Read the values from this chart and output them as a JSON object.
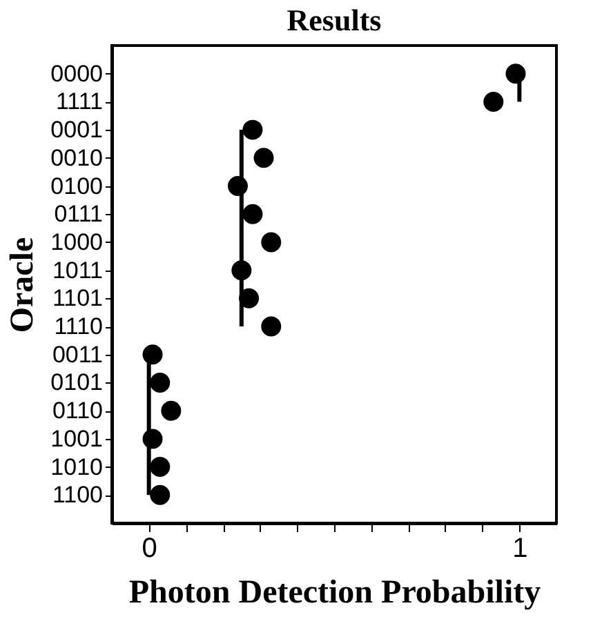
{
  "chart_data": {
    "type": "scatter",
    "title": "Results",
    "xlabel": "Photon Detection Probability",
    "ylabel": "Oracle",
    "orientation": "horizontal",
    "grid": false,
    "categories": [
      "0000",
      "1111",
      "0001",
      "0010",
      "0100",
      "0111",
      "1000",
      "1011",
      "1101",
      "1110",
      "0011",
      "0101",
      "0110",
      "1001",
      "1010",
      "1100"
    ],
    "xlim": [
      -0.1,
      1.1
    ],
    "xticks": [
      0,
      {
        "value": 0.1,
        "label": null
      },
      {
        "value": 0.2,
        "label": null
      },
      {
        "value": 0.3,
        "label": null
      },
      {
        "value": 0.4,
        "label": null
      },
      {
        "value": 0.5,
        "label": null
      },
      {
        "value": 0.6,
        "label": null
      },
      {
        "value": 0.7,
        "label": null
      },
      {
        "value": 0.8,
        "label": null
      },
      {
        "value": 0.9,
        "label": null
      },
      1
    ],
    "series": [
      {
        "type": "scatter",
        "marker": "circle",
        "color": "#000000",
        "values": [
          0.99,
          0.93,
          0.28,
          0.31,
          0.24,
          0.28,
          0.33,
          0.25,
          0.27,
          0.33,
          0.01,
          0.03,
          0.06,
          0.01,
          0.03,
          0.03
        ]
      },
      {
        "type": "line",
        "marker": "none",
        "color": "#000000",
        "values": [
          1,
          1,
          null,
          null,
          null,
          null,
          null,
          null,
          null,
          null,
          null,
          null,
          null,
          null,
          null,
          null
        ]
      },
      {
        "type": "line",
        "marker": "none",
        "color": "#000000",
        "values": [
          null,
          null,
          0.25,
          0.25,
          0.25,
          0.25,
          0.25,
          0.25,
          0.25,
          0.25,
          null,
          null,
          null,
          null,
          null,
          null
        ]
      },
      {
        "type": "line",
        "marker": "none",
        "color": "#000000",
        "values": [
          null,
          null,
          null,
          null,
          null,
          null,
          null,
          null,
          null,
          null,
          0,
          0,
          0,
          0,
          0,
          0
        ]
      }
    ]
  }
}
